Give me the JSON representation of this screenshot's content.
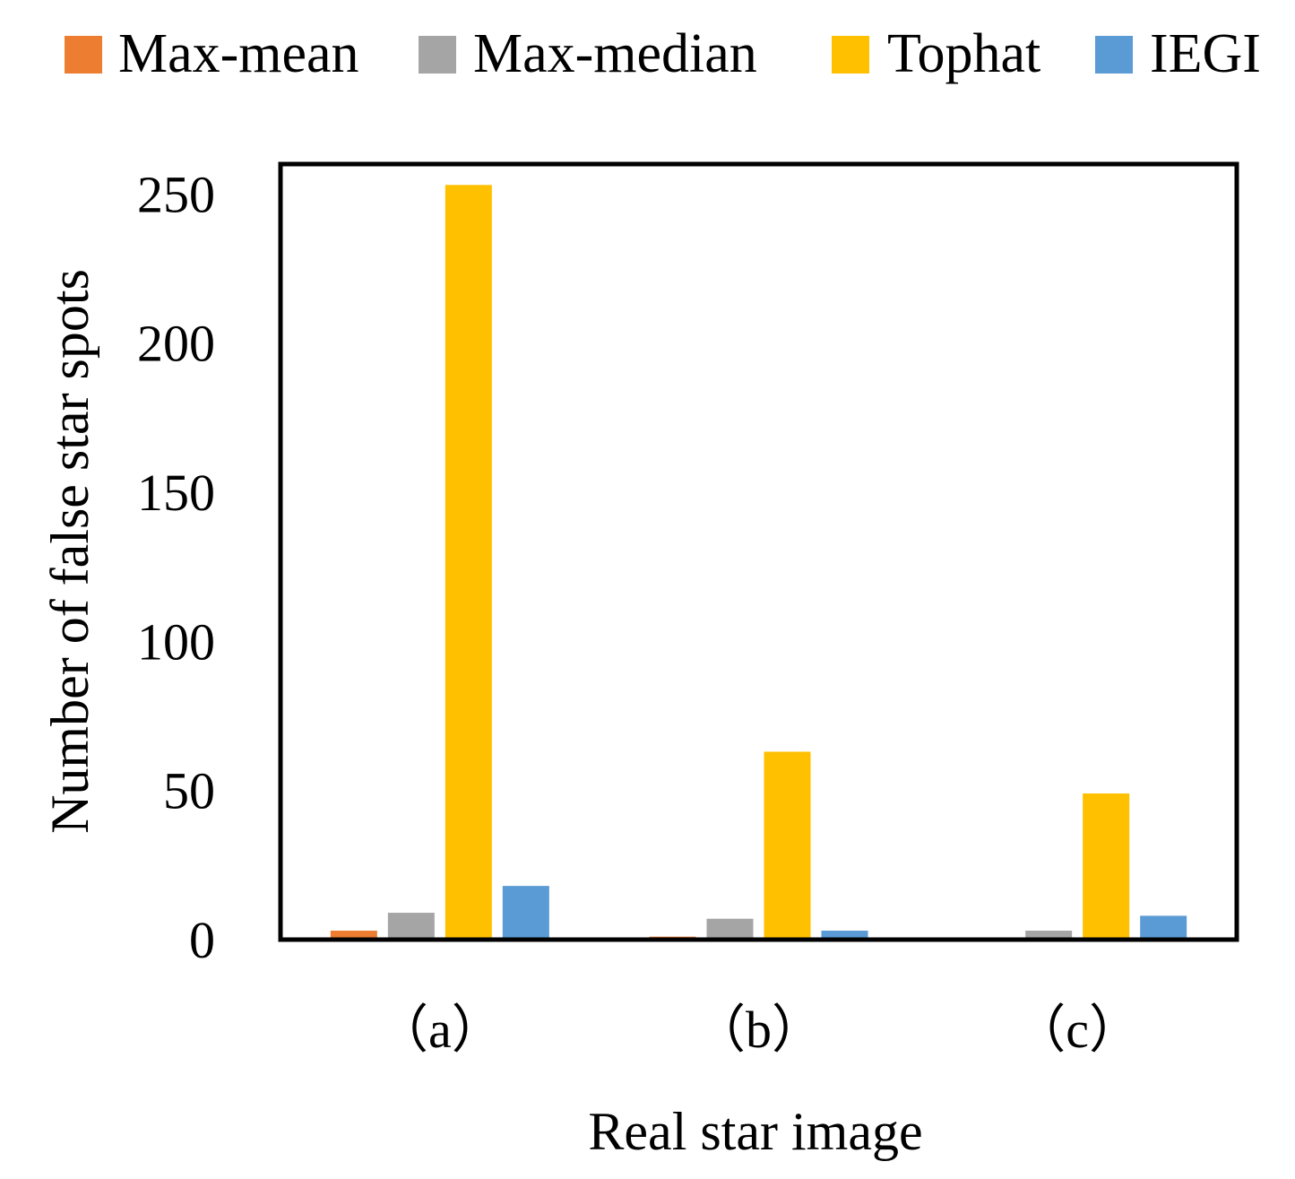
{
  "chart_data": {
    "type": "bar",
    "title": "",
    "xlabel": "Real star image",
    "ylabel": "Number of false star spots",
    "categories": [
      "（a）",
      "（b）",
      "（c）"
    ],
    "series": [
      {
        "name": "Max-mean",
        "color": "#ED7D31",
        "values": [
          3,
          1,
          0
        ]
      },
      {
        "name": "Max-median",
        "color": "#A5A5A5",
        "values": [
          9,
          7,
          3
        ]
      },
      {
        "name": "Tophat",
        "color": "#FFC000",
        "values": [
          253,
          63,
          49
        ]
      },
      {
        "name": "IEGI",
        "color": "#5B9BD5",
        "values": [
          18,
          3,
          8
        ]
      }
    ],
    "ylim": [
      0,
      260
    ],
    "yticks": [
      0,
      50,
      100,
      150,
      200,
      250
    ],
    "grid": false,
    "legend_position": "top"
  }
}
